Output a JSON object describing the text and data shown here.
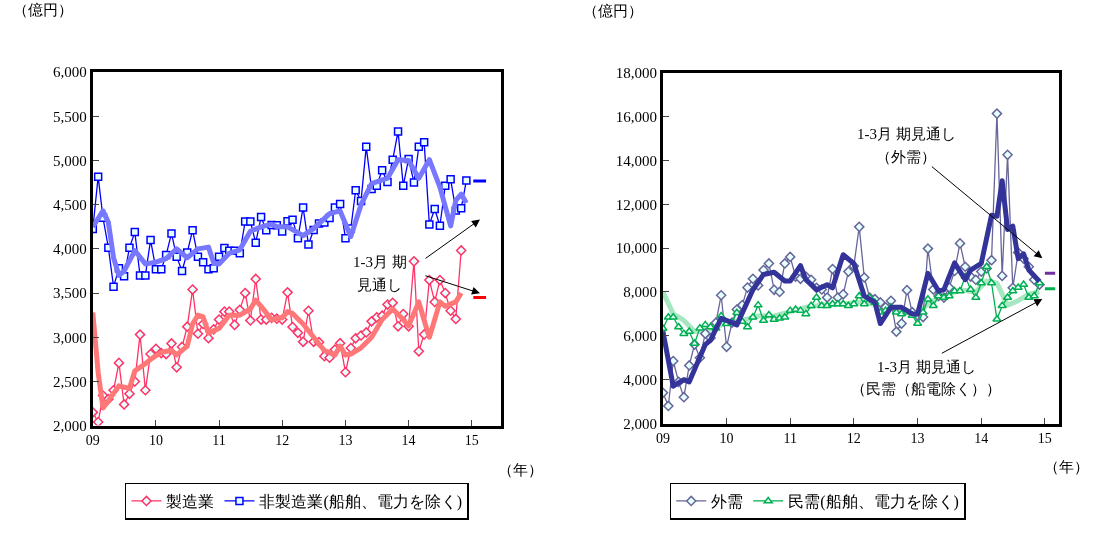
{
  "chart_data": [
    {
      "type": "line",
      "ylabel": "（億円）",
      "xlabel": "（年）",
      "legend": "bottom",
      "x": [
        "2009-01",
        "2009-02",
        "2009-03",
        "2009-04",
        "2009-05",
        "2009-06",
        "2009-07",
        "2009-08",
        "2009-09",
        "2009-10",
        "2009-11",
        "2009-12",
        "2010-01",
        "2010-02",
        "2010-03",
        "2010-04",
        "2010-05",
        "2010-06",
        "2010-07",
        "2010-08",
        "2010-09",
        "2010-10",
        "2010-11",
        "2010-12",
        "2011-01",
        "2011-02",
        "2011-03",
        "2011-04",
        "2011-05",
        "2011-06",
        "2011-07",
        "2011-08",
        "2011-09",
        "2011-10",
        "2011-11",
        "2011-12",
        "2012-01",
        "2012-02",
        "2012-03",
        "2012-04",
        "2012-05",
        "2012-06",
        "2012-07",
        "2012-08",
        "2012-09",
        "2012-10",
        "2012-11",
        "2012-12",
        "2013-01",
        "2013-02",
        "2013-03",
        "2013-04",
        "2013-05",
        "2013-06",
        "2013-07",
        "2013-08",
        "2013-09",
        "2013-10",
        "2013-11",
        "2013-12",
        "2014-01",
        "2014-02",
        "2014-03",
        "2014-04",
        "2014-05",
        "2014-06",
        "2014-07",
        "2014-08",
        "2014-09",
        "2014-10",
        "2014-11",
        "2014-12"
      ],
      "xlim": [
        "2009-01-01",
        "2015-06-20"
      ],
      "xticks": [
        {
          "value": "2009-01-01",
          "label": "09"
        },
        {
          "value": "2010-01-01",
          "label": "10"
        },
        {
          "value": "2011-01-01",
          "label": "11"
        },
        {
          "value": "2012-01-01",
          "label": "12"
        },
        {
          "value": "2013-01-01",
          "label": "13"
        },
        {
          "value": "2014-01-01",
          "label": "14"
        },
        {
          "value": "2015-01-01",
          "label": "15"
        }
      ],
      "ylim": [
        2000,
        6000
      ],
      "yticks": [
        {
          "value": 2000,
          "label": "2,000"
        },
        {
          "value": 2500,
          "label": "2,500"
        },
        {
          "value": 3000,
          "label": "3,000"
        },
        {
          "value": 3500,
          "label": "3,500"
        },
        {
          "value": 4000,
          "label": "4,000"
        },
        {
          "value": 4500,
          "label": "4,500"
        },
        {
          "value": 5000,
          "label": "5,000"
        },
        {
          "value": 5500,
          "label": "5,500"
        },
        {
          "value": 6000,
          "label": "6,000"
        }
      ],
      "series": [
        {
          "name": "製造業",
          "color": "#ff3366",
          "marker": "diamond",
          "values": [
            2150,
            2040,
            2340,
            2300,
            2400,
            2710,
            2240,
            2360,
            2500,
            3030,
            2400,
            2810,
            2870,
            2820,
            2810,
            2930,
            2660,
            2890,
            3120,
            3540,
            3040,
            3150,
            2990,
            3090,
            3200,
            3290,
            3290,
            3140,
            3310,
            3500,
            3190,
            3660,
            3200,
            3200,
            3220,
            3210,
            3200,
            3508,
            3116,
            3050,
            2948,
            3300,
            2948,
            2944,
            2786,
            2768,
            2860,
            2933,
            2604,
            2878,
            2988,
            3020,
            3054,
            3180,
            3226,
            3244,
            3370,
            3390,
            3124,
            3263,
            3124,
            3859,
            2841,
            3032,
            3647,
            3400,
            3647,
            3500,
            3300,
            3207,
            3983,
            null
          ]
        },
        {
          "name": "非製造業(船舶、電力を除く)",
          "color": "#0000ff",
          "marker": "square",
          "values": [
            4225,
            4818,
            4353,
            4013,
            3573,
            3780,
            3690,
            4013,
            4190,
            3700,
            3700,
            4100,
            3770,
            3770,
            3930,
            4175,
            3910,
            3750,
            3960,
            4210,
            3910,
            3850,
            3770,
            3780,
            3910,
            4010,
            3980,
            3980,
            3950,
            4310,
            4310,
            4070,
            4360,
            4210,
            4270,
            4269,
            4196,
            4313,
            4331,
            4122,
            4470,
            4049,
            4214,
            4287,
            4300,
            4349,
            4470,
            4507,
            4122,
            4232,
            4664,
            4543,
            5155,
            4679,
            4715,
            4891,
            4756,
            5008,
            5330,
            4715,
            5019,
            4752,
            5155,
            5206,
            4276,
            4452,
            4262,
            4715,
            4789,
            4434,
            4460,
            4774
          ]
        },
        {
          "color": "#ff7777",
          "marker": "none",
          "x": [
            "2009-01",
            "2009-02",
            "2009-03",
            "2009-04",
            "2009-06",
            "2009-08",
            "2009-09",
            "2009-11",
            "2009-12",
            "2010-02",
            "2010-04",
            "2010-05",
            "2010-07",
            "2010-08",
            "2010-09",
            "2010-10",
            "2010-11",
            "2011-01",
            "2011-03",
            "2011-05",
            "2011-07",
            "2011-08",
            "2011-09",
            "2011-11",
            "2012-01",
            "2012-02",
            "2012-03",
            "2012-05",
            "2012-07",
            "2012-09",
            "2012-11",
            "2012-12",
            "2013-01",
            "2013-02",
            "2013-04",
            "2013-06",
            "2013-08",
            "2013-10",
            "2013-12",
            "2014-01",
            "2014-03",
            "2014-04",
            "2014-05",
            "2014-06",
            "2014-07",
            "2014-08",
            "2014-10",
            "2014-11"
          ],
          "values": [
            3280,
            2600,
            2200,
            2280,
            2450,
            2420,
            2620,
            2700,
            2750,
            2830,
            2850,
            2800,
            2900,
            3150,
            3250,
            3230,
            3050,
            3100,
            3250,
            3250,
            3320,
            3420,
            3350,
            3200,
            3220,
            3290,
            3270,
            3150,
            3000,
            2850,
            2800,
            2900,
            2800,
            2810,
            2880,
            3000,
            3200,
            3320,
            3200,
            3130,
            3400,
            3190,
            3000,
            3200,
            3400,
            3350,
            3400,
            3500
          ]
        },
        {
          "color": "#7777ff",
          "marker": "none",
          "x": [
            "2009-01",
            "2009-03",
            "2009-04",
            "2009-05",
            "2009-06",
            "2009-07",
            "2009-09",
            "2009-11",
            "2010-01",
            "2010-03",
            "2010-05",
            "2010-07",
            "2010-09",
            "2010-11",
            "2010-12",
            "2011-01",
            "2011-03",
            "2011-05",
            "2011-07",
            "2011-09",
            "2011-11",
            "2011-12",
            "2012-02",
            "2012-05",
            "2012-07",
            "2012-10",
            "2012-12",
            "2013-02",
            "2013-04",
            "2013-06",
            "2013-09",
            "2013-11",
            "2014-01",
            "2014-03",
            "2014-05",
            "2014-07",
            "2014-09",
            "2014-10",
            "2014-11",
            "2014-12"
          ],
          "values": [
            4250,
            4430,
            4300,
            3900,
            3700,
            3750,
            3980,
            3830,
            3850,
            3890,
            4000,
            3900,
            4000,
            4020,
            3840,
            3830,
            3950,
            3990,
            4200,
            4250,
            4280,
            4250,
            4250,
            4150,
            4230,
            4400,
            4430,
            4140,
            4500,
            4740,
            4800,
            5010,
            5000,
            4800,
            5010,
            4700,
            4260,
            4550,
            4620,
            4520
          ]
        },
        {
          "color": "#ff0000",
          "marker": "none",
          "x": [
            "2015-01-10",
            "2015-03-25"
          ],
          "values": [
            3450,
            3450
          ]
        },
        {
          "color": "#0000ff",
          "marker": "none",
          "x": [
            "2015-01-10",
            "2015-03-25"
          ],
          "values": [
            4770,
            4770
          ]
        }
      ],
      "annotations": [
        "1-3月 期",
        "見通し"
      ]
    },
    {
      "type": "line",
      "ylabel": "（億円）",
      "xlabel": "（年）",
      "legend": "bottom",
      "x": [
        "2009-01",
        "2009-02",
        "2009-03",
        "2009-04",
        "2009-05",
        "2009-06",
        "2009-07",
        "2009-08",
        "2009-09",
        "2009-10",
        "2009-11",
        "2009-12",
        "2010-01",
        "2010-02",
        "2010-03",
        "2010-04",
        "2010-05",
        "2010-06",
        "2010-07",
        "2010-08",
        "2010-09",
        "2010-10",
        "2010-11",
        "2010-12",
        "2011-01",
        "2011-02",
        "2011-03",
        "2011-04",
        "2011-05",
        "2011-06",
        "2011-07",
        "2011-08",
        "2011-09",
        "2011-10",
        "2011-11",
        "2011-12",
        "2012-01",
        "2012-02",
        "2012-03",
        "2012-04",
        "2012-05",
        "2012-06",
        "2012-07",
        "2012-08",
        "2012-09",
        "2012-10",
        "2012-11",
        "2012-12",
        "2013-01",
        "2013-02",
        "2013-03",
        "2013-04",
        "2013-05",
        "2013-06",
        "2013-07",
        "2013-08",
        "2013-09",
        "2013-10",
        "2013-11",
        "2013-12",
        "2014-01",
        "2014-02",
        "2014-03",
        "2014-04",
        "2014-05",
        "2014-06",
        "2014-07",
        "2014-08",
        "2014-09",
        "2014-10",
        "2014-11",
        "2014-12"
      ],
      "xlim": [
        "2009-01-01",
        "2015-03-25"
      ],
      "xticks": [
        {
          "value": "2009-01-01",
          "label": "09"
        },
        {
          "value": "2010-01-01",
          "label": "10"
        },
        {
          "value": "2011-01-01",
          "label": "11"
        },
        {
          "value": "2012-01-01",
          "label": "12"
        },
        {
          "value": "2013-01-01",
          "label": "13"
        },
        {
          "value": "2014-01-01",
          "label": "14"
        },
        {
          "value": "2015-01-01",
          "label": "15"
        }
      ],
      "ylim": [
        2000,
        18000
      ],
      "yticks": [
        {
          "value": 2000,
          "label": "2,000"
        },
        {
          "value": 4000,
          "label": "4,000"
        },
        {
          "value": 6000,
          "label": "6,000"
        },
        {
          "value": 8000,
          "label": "8,000"
        },
        {
          "value": 10000,
          "label": "10,000"
        },
        {
          "value": 12000,
          "label": "12,000"
        },
        {
          "value": 14000,
          "label": "14,000"
        },
        {
          "value": 16000,
          "label": "16,000"
        },
        {
          "value": 18000,
          "label": "18,000"
        }
      ],
      "series": [
        {
          "color": "#a6e6c0",
          "marker": "none",
          "x": [
            "2009-01",
            "2009-03",
            "2009-05",
            "2009-07",
            "2009-10",
            "2010-01",
            "2010-04",
            "2010-07",
            "2010-10",
            "2011-01",
            "2011-04",
            "2011-07",
            "2011-11",
            "2012-03",
            "2012-06",
            "2012-09",
            "2012-12",
            "2013-01",
            "2013-03",
            "2013-06",
            "2013-09",
            "2013-12",
            "2014-02",
            "2014-04",
            "2014-06",
            "2014-08",
            "2014-10",
            "2014-12"
          ],
          "values": [
            8000,
            7000,
            6700,
            6200,
            6300,
            6600,
            6700,
            6900,
            6900,
            7100,
            7300,
            7400,
            7450,
            7550,
            7350,
            7200,
            7100,
            6900,
            7500,
            7800,
            8100,
            8000,
            8500,
            8400,
            7400,
            7600,
            7900,
            8000
          ]
        },
        {
          "name": "外需",
          "color": "#666699",
          "marker": "diamond",
          "values": [
            3400,
            2800,
            4850,
            3900,
            3200,
            4650,
            5600,
            5000,
            6100,
            5900,
            6600,
            7850,
            5500,
            6600,
            7200,
            7400,
            8200,
            8600,
            8300,
            9000,
            9300,
            8100,
            8000,
            9300,
            9600,
            8700,
            8600,
            8700,
            8557,
            8187,
            8114,
            7744,
            9046,
            7744,
            7892,
            8928,
            9180,
            10970,
            8660,
            7744,
            7670,
            7522,
            7300,
            7596,
            6190,
            6560,
            8084,
            7078,
            6930,
            6856,
            9978,
            8114,
            7818,
            7744,
            8200,
            8958,
            10216,
            9150,
            8700,
            8557,
            8928,
            9076,
            9450,
            16135,
            8734,
            14256,
            8187,
            9800,
            9520,
            9150,
            8557,
            8336
          ]
        },
        {
          "name": "民需(船舶、電力を除く)",
          "color": "#00b050",
          "marker": "triangle",
          "values": [
            6337,
            6850,
            6850,
            6400,
            6100,
            6200,
            5650,
            6350,
            6500,
            6400,
            6350,
            6900,
            6550,
            6600,
            7050,
            6650,
            6400,
            6850,
            7400,
            6700,
            6950,
            6750,
            6800,
            6850,
            7150,
            7200,
            7150,
            7000,
            7375,
            7744,
            7375,
            7375,
            7450,
            7450,
            7450,
            7375,
            7450,
            7818,
            7450,
            7744,
            7522,
            7078,
            7150,
            7300,
            7078,
            7000,
            7078,
            6930,
            6560,
            7078,
            7670,
            7375,
            7818,
            7744,
            7818,
            8040,
            8040,
            8700,
            8114,
            7744,
            8410,
            9150,
            8410,
            6752,
            7375,
            7744,
            8040,
            8200,
            8336,
            7744,
            7818,
            8410
          ]
        },
        {
          "color": "#333399",
          "marker": "none",
          "x": [
            "2009-01",
            "2009-03",
            "2009-05",
            "2009-06",
            "2009-09",
            "2009-10",
            "2009-12",
            "2010-02",
            "2010-03",
            "2010-06",
            "2010-08",
            "2010-10",
            "2010-12",
            "2011-01",
            "2011-03",
            "2011-04",
            "2011-06",
            "2011-08",
            "2011-09",
            "2011-11",
            "2012-01",
            "2012-03",
            "2012-05",
            "2012-06",
            "2012-08",
            "2012-10",
            "2012-12",
            "2013-01",
            "2013-03",
            "2013-05",
            "2013-06",
            "2013-08",
            "2013-10",
            "2013-11",
            "2014-01",
            "2014-03",
            "2014-04",
            "2014-05",
            "2014-06",
            "2014-07",
            "2014-08",
            "2014-09",
            "2014-10",
            "2014-12"
          ],
          "values": [
            6200,
            3700,
            4000,
            3900,
            5600,
            5800,
            6800,
            6600,
            6500,
            8100,
            8800,
            8900,
            8500,
            8500,
            9200,
            8560,
            8100,
            8330,
            8190,
            9700,
            9300,
            7820,
            7520,
            6560,
            7300,
            7300,
            7000,
            7000,
            8850,
            8040,
            8110,
            9330,
            8560,
            9000,
            9300,
            11500,
            11450,
            13070,
            10850,
            11000,
            9520,
            9740,
            9000,
            8480
          ]
        },
        {
          "color": "#7030a0",
          "marker": "none",
          "x": [
            "2015-01-01",
            "2015-03-01"
          ],
          "values": [
            8850,
            8850
          ]
        },
        {
          "color": "#00b050",
          "marker": "none",
          "x": [
            "2015-01-01",
            "2015-03-01"
          ],
          "values": [
            8150,
            8150
          ]
        }
      ],
      "annotations": [
        "1-3月 期見通し",
        "（外需）",
        "1-3月 期見通し",
        "（民需（船電除く））"
      ]
    }
  ]
}
